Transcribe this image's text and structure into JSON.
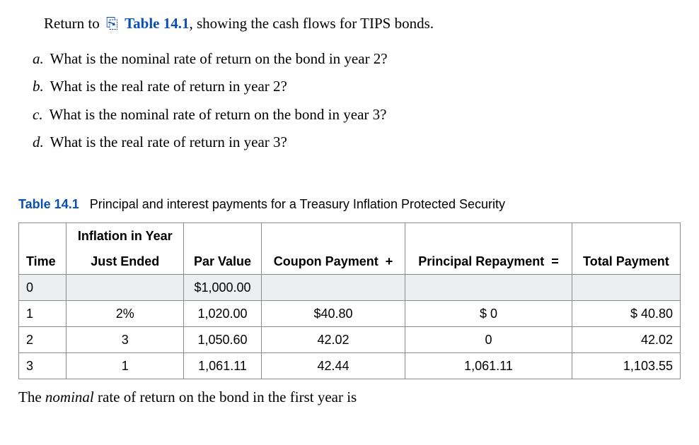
{
  "intro": {
    "prefix": "Return to",
    "icon": "⎘",
    "link_text": "Table 14.1",
    "suffix": ", showing the cash flows for TIPS bonds."
  },
  "questions": [
    {
      "letter": "a.",
      "text": "What is the nominal rate of return on the bond in year 2?"
    },
    {
      "letter": "b.",
      "text": "What is the real rate of return in year 2?"
    },
    {
      "letter": "c.",
      "text": "What is the nominal rate of return on the bond in year 3?"
    },
    {
      "letter": "d.",
      "text": "What is the real rate of return in year 3?"
    }
  ],
  "table": {
    "label": "Table 14.1",
    "caption": "Principal and interest payments for a Treasury Inflation Protected Security",
    "head": {
      "time": "Time",
      "inflation_l1": "Inflation in Year",
      "inflation_l2": "Just Ended",
      "par": "Par Value",
      "coupon": "Coupon Payment",
      "plus": "+",
      "principal": "Principal Repayment",
      "eq": "=",
      "total": "Total Payment"
    },
    "rows": [
      {
        "time": "0",
        "inflation": "",
        "par": "$1,000.00",
        "coupon": "",
        "principal": "",
        "total": ""
      },
      {
        "time": "1",
        "inflation": "2%",
        "par": "1,020.00",
        "coupon": "$40.80",
        "principal": "$   0",
        "total": "$  40.80"
      },
      {
        "time": "2",
        "inflation": "3",
        "par": "1,050.60",
        "coupon": "42.02",
        "principal": "0",
        "total": "42.02"
      },
      {
        "time": "3",
        "inflation": "1",
        "par": "1,061.11",
        "coupon": "42.44",
        "principal": "1,061.11",
        "total": "1,103.55"
      }
    ]
  },
  "footer": {
    "pre": "The ",
    "ital": "nominal",
    "post": " rate of return on the bond in the first year is"
  }
}
